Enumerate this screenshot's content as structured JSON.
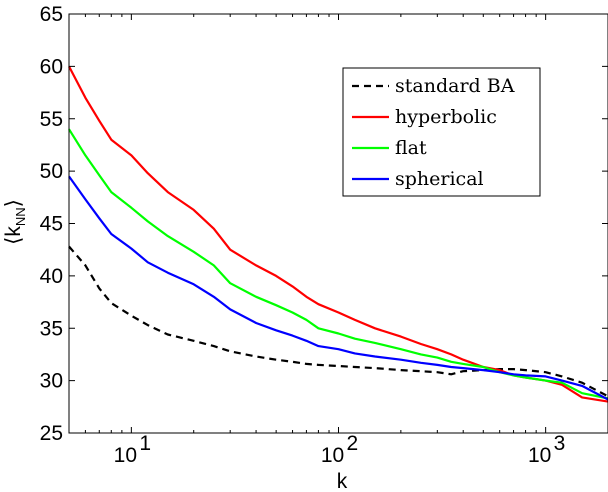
{
  "chart_data": {
    "type": "line",
    "xlabel": "k",
    "ylabel": "⟨k_NN⟩",
    "x_scale": "log",
    "xlim": [
      5,
      2000
    ],
    "ylim": [
      25,
      65
    ],
    "y_ticks": [
      25,
      30,
      35,
      40,
      45,
      50,
      55,
      60,
      65
    ],
    "x_ticks": [
      10,
      100,
      1000
    ],
    "x_tick_labels": [
      "10",
      "10",
      "10"
    ],
    "x_tick_exponents": [
      "1",
      "2",
      "3"
    ],
    "grid": false,
    "legend_position": "top-right",
    "series": [
      {
        "name": "standard BA",
        "color": "#000000",
        "dash": true,
        "points": [
          [
            5,
            42.8
          ],
          [
            6,
            41.0
          ],
          [
            7,
            38.8
          ],
          [
            8,
            37.4
          ],
          [
            10,
            36.2
          ],
          [
            12,
            35.3
          ],
          [
            15,
            34.4
          ],
          [
            20,
            33.8
          ],
          [
            25,
            33.3
          ],
          [
            30,
            32.8
          ],
          [
            40,
            32.3
          ],
          [
            50,
            32.0
          ],
          [
            60,
            31.8
          ],
          [
            70,
            31.6
          ],
          [
            80,
            31.5
          ],
          [
            100,
            31.4
          ],
          [
            120,
            31.3
          ],
          [
            150,
            31.2
          ],
          [
            200,
            31.0
          ],
          [
            250,
            30.9
          ],
          [
            300,
            30.8
          ],
          [
            350,
            30.6
          ],
          [
            400,
            30.9
          ],
          [
            500,
            31.0
          ],
          [
            600,
            31.1
          ],
          [
            700,
            31.1
          ],
          [
            800,
            31.0
          ],
          [
            1000,
            30.8
          ],
          [
            1200,
            30.4
          ],
          [
            1500,
            29.8
          ],
          [
            2000,
            28.5
          ]
        ]
      },
      {
        "name": "hyperbolic",
        "color": "#ff0000",
        "dash": false,
        "points": [
          [
            5,
            60.0
          ],
          [
            6,
            57.0
          ],
          [
            7,
            54.8
          ],
          [
            8,
            53.0
          ],
          [
            10,
            51.5
          ],
          [
            12,
            49.8
          ],
          [
            15,
            48.0
          ],
          [
            20,
            46.3
          ],
          [
            25,
            44.5
          ],
          [
            30,
            42.5
          ],
          [
            40,
            41.0
          ],
          [
            50,
            40.0
          ],
          [
            60,
            39.0
          ],
          [
            70,
            38.0
          ],
          [
            80,
            37.3
          ],
          [
            100,
            36.5
          ],
          [
            120,
            35.8
          ],
          [
            150,
            35.0
          ],
          [
            200,
            34.2
          ],
          [
            250,
            33.5
          ],
          [
            300,
            33.0
          ],
          [
            350,
            32.5
          ],
          [
            400,
            32.0
          ],
          [
            500,
            31.3
          ],
          [
            600,
            31.0
          ],
          [
            700,
            30.5
          ],
          [
            800,
            30.3
          ],
          [
            1000,
            30.0
          ],
          [
            1200,
            29.6
          ],
          [
            1500,
            28.4
          ],
          [
            2000,
            28.0
          ]
        ]
      },
      {
        "name": "flat",
        "color": "#00ff00",
        "dash": false,
        "points": [
          [
            5,
            54.0
          ],
          [
            6,
            51.5
          ],
          [
            7,
            49.6
          ],
          [
            8,
            48.0
          ],
          [
            10,
            46.5
          ],
          [
            12,
            45.2
          ],
          [
            15,
            43.8
          ],
          [
            20,
            42.3
          ],
          [
            25,
            41.0
          ],
          [
            30,
            39.3
          ],
          [
            40,
            38.0
          ],
          [
            50,
            37.2
          ],
          [
            60,
            36.5
          ],
          [
            70,
            35.8
          ],
          [
            80,
            35.0
          ],
          [
            100,
            34.5
          ],
          [
            120,
            34.0
          ],
          [
            150,
            33.6
          ],
          [
            200,
            33.0
          ],
          [
            250,
            32.5
          ],
          [
            300,
            32.2
          ],
          [
            350,
            31.8
          ],
          [
            400,
            31.6
          ],
          [
            500,
            31.3
          ],
          [
            600,
            30.8
          ],
          [
            700,
            30.5
          ],
          [
            800,
            30.3
          ],
          [
            1000,
            30.0
          ],
          [
            1200,
            29.8
          ],
          [
            1500,
            28.8
          ],
          [
            2000,
            28.3
          ]
        ]
      },
      {
        "name": "spherical",
        "color": "#0000ff",
        "dash": false,
        "points": [
          [
            5,
            49.5
          ],
          [
            6,
            47.3
          ],
          [
            7,
            45.5
          ],
          [
            8,
            44.0
          ],
          [
            10,
            42.6
          ],
          [
            12,
            41.3
          ],
          [
            15,
            40.3
          ],
          [
            20,
            39.2
          ],
          [
            25,
            38.0
          ],
          [
            30,
            36.8
          ],
          [
            40,
            35.5
          ],
          [
            50,
            34.8
          ],
          [
            60,
            34.3
          ],
          [
            70,
            33.8
          ],
          [
            80,
            33.3
          ],
          [
            100,
            33.0
          ],
          [
            120,
            32.6
          ],
          [
            150,
            32.3
          ],
          [
            200,
            32.0
          ],
          [
            250,
            31.7
          ],
          [
            300,
            31.5
          ],
          [
            350,
            31.3
          ],
          [
            400,
            31.2
          ],
          [
            500,
            31.0
          ],
          [
            600,
            30.8
          ],
          [
            700,
            30.6
          ],
          [
            800,
            30.5
          ],
          [
            1000,
            30.4
          ],
          [
            1200,
            30.0
          ],
          [
            1500,
            29.5
          ],
          [
            2000,
            28.2
          ]
        ]
      }
    ]
  }
}
